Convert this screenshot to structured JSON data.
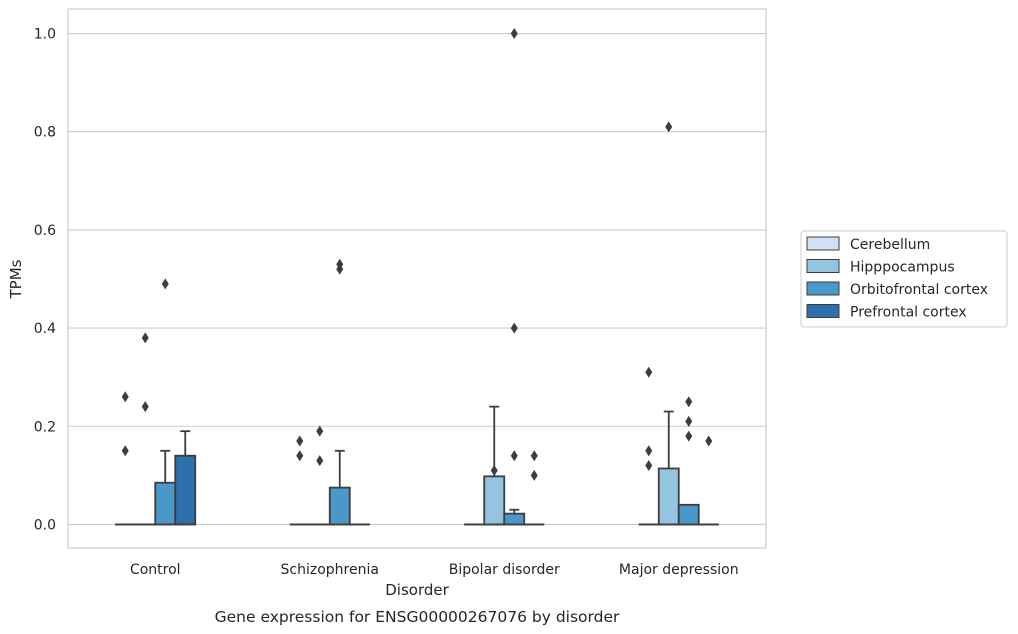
{
  "chart_data": {
    "type": "box",
    "title": "",
    "caption": "Gene expression for ENSG00000267076 by disorder",
    "xlabel": "Disorder",
    "ylabel": "TPMs",
    "ylim": [
      -0.048,
      1.05
    ],
    "yticks": [
      0.0,
      0.2,
      0.4,
      0.6,
      0.8,
      1.0
    ],
    "ytick_labels": [
      "0.0",
      "0.2",
      "0.4",
      "0.6",
      "0.8",
      "1.0"
    ],
    "categories": [
      "Control",
      "Schizophrenia",
      "Bipolar disorder",
      "Major depression"
    ],
    "grid": "horizontal",
    "legend_position": "right",
    "series": [
      {
        "name": "Cerebellum",
        "color": "#d0e1f2",
        "boxes": [
          {
            "q1": 0.0,
            "median": 0.0,
            "q3": 0.0,
            "whisker_low": 0.0,
            "whisker_high": 0.0,
            "outliers": [
              0.15,
              0.26
            ]
          },
          {
            "q1": 0.0,
            "median": 0.0,
            "q3": 0.0,
            "whisker_low": 0.0,
            "whisker_high": 0.0,
            "outliers": [
              0.14,
              0.17
            ]
          },
          {
            "q1": 0.0,
            "median": 0.0,
            "q3": 0.0,
            "whisker_low": 0.0,
            "whisker_high": 0.0,
            "outliers": []
          },
          {
            "q1": 0.0,
            "median": 0.0,
            "q3": 0.0,
            "whisker_low": 0.0,
            "whisker_high": 0.0,
            "outliers": [
              0.12,
              0.15,
              0.31
            ]
          }
        ]
      },
      {
        "name": "Hipppocampus",
        "color": "#94c4df",
        "boxes": [
          {
            "q1": 0.0,
            "median": 0.0,
            "q3": 0.0,
            "whisker_low": 0.0,
            "whisker_high": 0.0,
            "outliers": [
              0.24,
              0.38
            ]
          },
          {
            "q1": 0.0,
            "median": 0.0,
            "q3": 0.0,
            "whisker_low": 0.0,
            "whisker_high": 0.0,
            "outliers": [
              0.13,
              0.19
            ]
          },
          {
            "q1": 0.0,
            "median": 0.0,
            "q3": 0.098,
            "whisker_low": 0.0,
            "whisker_high": 0.24,
            "outliers": [
              0.11
            ]
          },
          {
            "q1": 0.0,
            "median": 0.0,
            "q3": 0.114,
            "whisker_low": 0.0,
            "whisker_high": 0.23,
            "outliers": [
              0.81
            ]
          }
        ]
      },
      {
        "name": "Orbitofrontal cortex",
        "color": "#4a98c9",
        "boxes": [
          {
            "q1": 0.0,
            "median": 0.0,
            "q3": 0.085,
            "whisker_low": 0.0,
            "whisker_high": 0.15,
            "outliers": [
              0.49
            ]
          },
          {
            "q1": 0.0,
            "median": 0.0,
            "q3": 0.075,
            "whisker_low": 0.0,
            "whisker_high": 0.15,
            "outliers": [
              0.52,
              0.53
            ]
          },
          {
            "q1": 0.0,
            "median": 0.0,
            "q3": 0.022,
            "whisker_low": 0.0,
            "whisker_high": 0.03,
            "outliers": [
              0.14,
              0.4,
              1.0
            ]
          },
          {
            "q1": 0.0,
            "median": 0.0,
            "q3": 0.04,
            "whisker_low": 0.0,
            "whisker_high": 0.04,
            "outliers": [
              0.18,
              0.21,
              0.25
            ]
          }
        ]
      },
      {
        "name": "Prefrontal cortex",
        "color": "#2e6fae",
        "boxes": [
          {
            "q1": 0.0,
            "median": 0.0,
            "q3": 0.14,
            "whisker_low": 0.0,
            "whisker_high": 0.19,
            "outliers": []
          },
          {
            "q1": 0.0,
            "median": 0.0,
            "q3": 0.0,
            "whisker_low": 0.0,
            "whisker_high": 0.0,
            "outliers": []
          },
          {
            "q1": 0.0,
            "median": 0.0,
            "q3": 0.0,
            "whisker_low": 0.0,
            "whisker_high": 0.0,
            "outliers": [
              0.1,
              0.14
            ]
          },
          {
            "q1": 0.0,
            "median": 0.0,
            "q3": 0.0,
            "whisker_low": 0.0,
            "whisker_high": 0.0,
            "outliers": [
              0.17
            ]
          }
        ]
      }
    ]
  }
}
